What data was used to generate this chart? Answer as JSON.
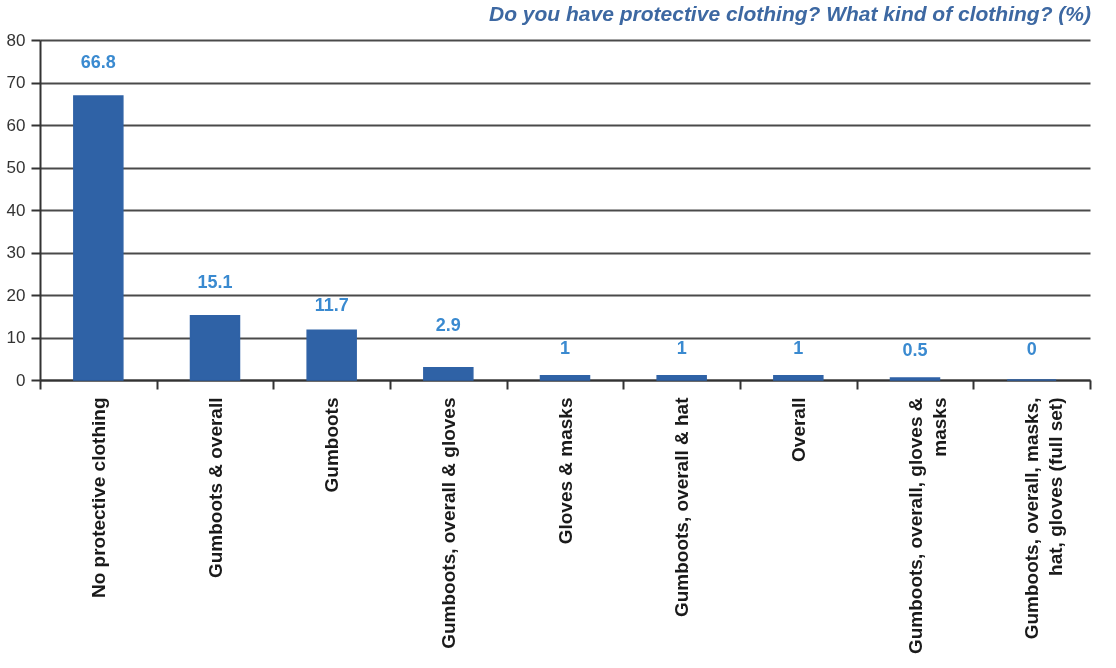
{
  "chart_data": {
    "type": "bar",
    "title": "Do you have protective clothing? What kind of clothing? (%)",
    "categories": [
      "No protective clothing",
      "Gumboots & overall",
      "Gumboots",
      "Gumboots, overall & gloves",
      "Gloves & masks",
      "Gumboots, overall & hat",
      "Overall",
      "Gumboots, overall, gloves & masks",
      "Gumboots, overall, masks, hat, gloves (full set)"
    ],
    "values": [
      66.8,
      15.1,
      11.7,
      2.9,
      1,
      1,
      1,
      0.5,
      0
    ],
    "color": "#2f62a6",
    "ylim": [
      0,
      80
    ],
    "yticks": [
      0,
      10,
      20,
      30,
      40,
      50,
      60,
      70,
      80
    ],
    "grid": "y",
    "data_labels": true
  }
}
